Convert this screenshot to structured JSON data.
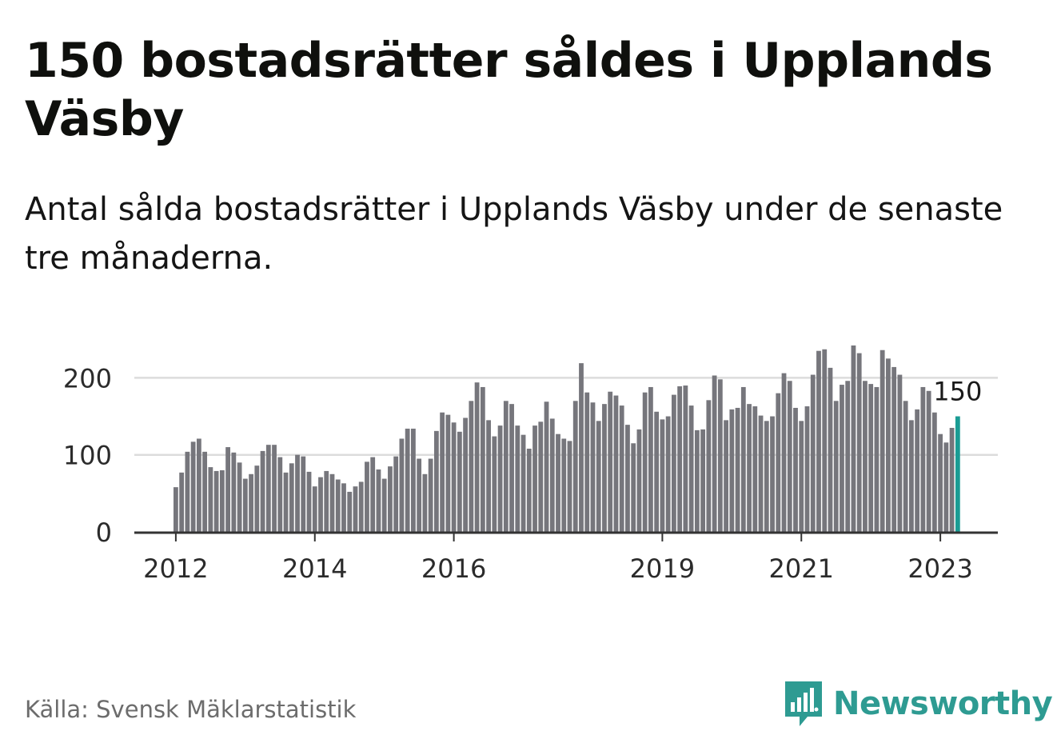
{
  "title": "150 bostadsrätter såldes i Upplands Väsby",
  "subtitle": "Antal sålda bostadsrätter i Upplands Väsby under de senaste tre månaderna.",
  "source": "Källa: Svensk Mäklarstatistik",
  "brand": {
    "name": "Newsworthy",
    "color": "#2e9b92"
  },
  "colors": {
    "bar": "#76767c",
    "highlight": "#1a9c94",
    "grid": "#dcdcdc",
    "axis": "#333333"
  },
  "chart_data": {
    "type": "bar",
    "title": "150 bostadsrätter såldes i Upplands Väsby",
    "xlabel": "",
    "ylabel": "",
    "ylim": [
      0,
      250
    ],
    "y_ticks": [
      0,
      100,
      200
    ],
    "x_ticks": [
      {
        "label": "2012",
        "index": 0
      },
      {
        "label": "2014",
        "index": 24
      },
      {
        "label": "2016",
        "index": 48
      },
      {
        "label": "2019",
        "index": 84
      },
      {
        "label": "2021",
        "index": 108
      },
      {
        "label": "2023",
        "index": 132
      }
    ],
    "start": "2012-01",
    "highlight_index": 135,
    "highlight_label": "150",
    "values": [
      58,
      77,
      104,
      117,
      121,
      104,
      84,
      79,
      80,
      110,
      103,
      90,
      69,
      75,
      86,
      105,
      113,
      113,
      97,
      77,
      89,
      100,
      98,
      78,
      59,
      71,
      79,
      75,
      68,
      63,
      52,
      59,
      65,
      91,
      97,
      81,
      69,
      85,
      98,
      121,
      134,
      134,
      95,
      75,
      95,
      131,
      155,
      152,
      142,
      130,
      148,
      170,
      194,
      188,
      145,
      124,
      138,
      170,
      166,
      138,
      126,
      108,
      138,
      143,
      169,
      147,
      127,
      121,
      118,
      170,
      219,
      181,
      168,
      144,
      166,
      182,
      177,
      164,
      139,
      115,
      133,
      181,
      188,
      156,
      146,
      150,
      178,
      189,
      190,
      164,
      132,
      133,
      171,
      203,
      198,
      145,
      159,
      161,
      188,
      166,
      163,
      151,
      144,
      150,
      180,
      206,
      196,
      161,
      144,
      163,
      204,
      235,
      237,
      213,
      170,
      191,
      196,
      242,
      232,
      196,
      192,
      188,
      236,
      225,
      214,
      204,
      170,
      145,
      159,
      188,
      183,
      155,
      127,
      116,
      135,
      150
    ]
  }
}
